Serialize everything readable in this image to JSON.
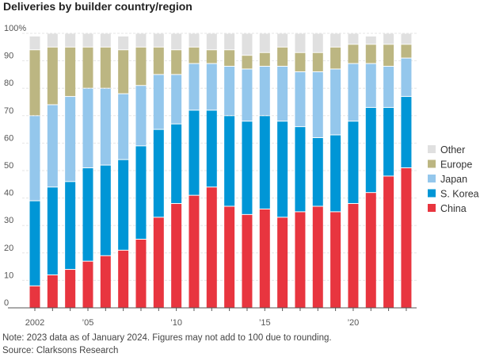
{
  "chart_data": {
    "type": "bar",
    "stacked": true,
    "title": "Deliveries by builder country/region",
    "xlabel": "",
    "ylabel": "",
    "ylim": [
      0,
      100
    ],
    "y_ticks": [
      "0",
      "10",
      "20",
      "30",
      "40",
      "50",
      "60",
      "70",
      "80",
      "90",
      "100%"
    ],
    "x_tick_labels": [
      {
        "year": 2002,
        "label": "2002"
      },
      {
        "year": 2005,
        "label": "’05"
      },
      {
        "year": 2010,
        "label": "’10"
      },
      {
        "year": 2015,
        "label": "’15"
      },
      {
        "year": 2020,
        "label": "’20"
      }
    ],
    "grid": "horizontal",
    "legend_placement": "right",
    "categories": [
      2002,
      2003,
      2004,
      2005,
      2006,
      2007,
      2008,
      2009,
      2010,
      2011,
      2012,
      2013,
      2014,
      2015,
      2016,
      2017,
      2018,
      2019,
      2020,
      2021,
      2022,
      2023
    ],
    "series": [
      {
        "name": "China",
        "color": "#e8353f",
        "values": [
          8,
          12,
          14,
          17,
          19,
          21,
          25,
          33,
          38,
          41,
          44,
          37,
          34,
          36,
          33,
          35,
          37,
          35,
          38,
          42,
          48,
          51
        ]
      },
      {
        "name": "S. Korea",
        "color": "#0096d6",
        "values": [
          31,
          32,
          32,
          34,
          33,
          33,
          34,
          32,
          29,
          31,
          28,
          33,
          34,
          34,
          35,
          31,
          25,
          28,
          30,
          31,
          25,
          26
        ]
      },
      {
        "name": "Japan",
        "color": "#94c7ec",
        "values": [
          31,
          30,
          31,
          29,
          28,
          24,
          22,
          20,
          18,
          17,
          17,
          18,
          19,
          18,
          20,
          20,
          24,
          24,
          21,
          16,
          15,
          14
        ]
      },
      {
        "name": "Europe",
        "color": "#bcb682",
        "values": [
          24,
          21,
          18,
          15,
          15,
          16,
          14,
          10,
          9,
          6,
          5,
          6,
          5,
          5,
          7,
          7,
          7,
          8,
          7,
          7,
          8,
          5
        ]
      },
      {
        "name": "Other",
        "color": "#e0e0e0",
        "values": [
          5,
          5,
          5,
          5,
          5,
          5,
          5,
          5,
          6,
          5,
          6,
          6,
          8,
          7,
          5,
          7,
          7,
          5,
          4,
          3,
          4,
          4
        ]
      }
    ]
  },
  "notes": {
    "note": "Note: 2023 data as of January 2024. Figures may not add to 100 due to rounding.",
    "source": "Source: Clarksons Research"
  }
}
